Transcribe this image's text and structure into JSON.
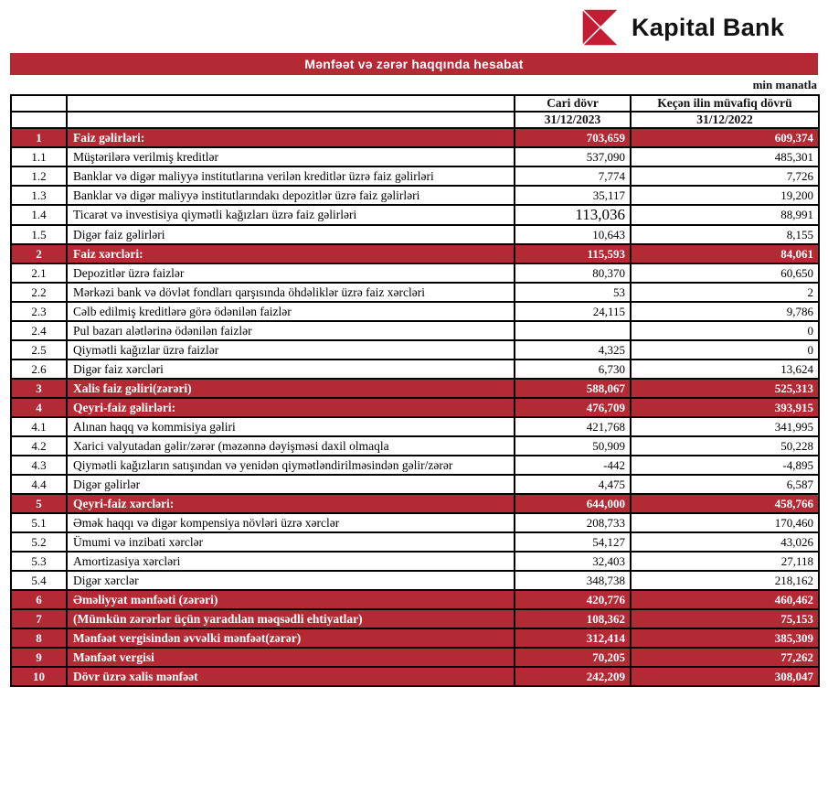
{
  "header": {
    "brand": "Kapital Bank"
  },
  "banner": {
    "title": "Mənfəət və zərər haqqında hesabat"
  },
  "unit_note": "min manatla",
  "colors": {
    "accent_red": "#B32A35",
    "logo_red": "#C31C33",
    "border_black": "#000000",
    "text_white": "#FFFFFF"
  },
  "table": {
    "col_current_label": "Cari dövr",
    "col_previous_label": "Keçən ilin müvafiq dövrü",
    "col_current_date": "31/12/2023",
    "col_previous_date": "31/12/2022",
    "rows": [
      {
        "num": "1",
        "label": "Faiz gəlirləri:",
        "current": "703,659",
        "previous": "609,374",
        "type": "section"
      },
      {
        "num": "1.1",
        "label": "Müştərilərə verilmiş kreditlər",
        "current": "537,090",
        "previous": "485,301",
        "type": "sub"
      },
      {
        "num": "1.2",
        "label": "Banklar və digər maliyyə institutlarına verilən kreditlər üzrə faiz gəlirləri",
        "current": "7,774",
        "previous": "7,726",
        "type": "sub"
      },
      {
        "num": "1.3",
        "label": "Banklar və digər maliyyə institutlarındakı depozitlər üzrə faiz gəlirləri",
        "current": "35,117",
        "previous": "19,200",
        "type": "sub"
      },
      {
        "num": "1.4",
        "label": "Ticarət və investisiya qiymətli kağızları üzrə faiz gəlirləri",
        "current": "113,036",
        "previous": "88,991",
        "type": "sub",
        "big_current": true
      },
      {
        "num": "1.5",
        "label": "Digər faiz gəlirləri",
        "current": "10,643",
        "previous": "8,155",
        "type": "sub"
      },
      {
        "num": "2",
        "label": "Faiz xərcləri:",
        "current": "115,593",
        "previous": "84,061",
        "type": "section"
      },
      {
        "num": "2.1",
        "label": "Depozitlər üzrə faizlər",
        "current": "80,370",
        "previous": "60,650",
        "type": "sub"
      },
      {
        "num": "2.2",
        "label": "Mərkəzi bank və dövlət fondları qarşısında öhdəliklər üzrə faiz xərcləri",
        "current": "53",
        "previous": "2",
        "type": "sub"
      },
      {
        "num": "2.3",
        "label": "Cəlb edilmiş kreditlərə görə ödənilən faizlər",
        "current": "24,115",
        "previous": "9,786",
        "type": "sub"
      },
      {
        "num": "2.4",
        "label": "Pul bazarı alətlərinə ödənilən faizlər",
        "current": "",
        "previous": "0",
        "type": "sub"
      },
      {
        "num": "2.5",
        "label": "Qiymətli kağızlar üzrə faizlər",
        "current": "4,325",
        "previous": "0",
        "type": "sub"
      },
      {
        "num": "2.6",
        "label": "Digər faiz xərcləri",
        "current": "6,730",
        "previous": "13,624",
        "type": "sub"
      },
      {
        "num": "3",
        "label": "Xalis faiz gəliri(zərəri)",
        "current": "588,067",
        "previous": "525,313",
        "type": "section"
      },
      {
        "num": "4",
        "label": "Qeyri-faiz gəlirləri:",
        "current": "476,709",
        "previous": "393,915",
        "type": "section"
      },
      {
        "num": "4.1",
        "label": "Alınan haqq və kommisiya gəliri",
        "current": "421,768",
        "previous": "341,995",
        "type": "sub"
      },
      {
        "num": "4.2",
        "label": "Xarici valyutadan gəlir/zərər (məzənnə dəyişməsi daxil olmaqla",
        "current": "50,909",
        "previous": "50,228",
        "type": "sub"
      },
      {
        "num": "4.3",
        "label": "Qiymətli kağızların satışından və yenidən qiymətləndirilməsindən gəlir/zərər",
        "current": "-442",
        "previous": "-4,895",
        "type": "sub"
      },
      {
        "num": "4.4",
        "label": "Digər gəlirlər",
        "current": "4,475",
        "previous": "6,587",
        "type": "sub"
      },
      {
        "num": "5",
        "label": "Qeyri-faiz xərcləri:",
        "current": "644,000",
        "previous": "458,766",
        "type": "section"
      },
      {
        "num": "5.1",
        "label": "Əmək haqqı və digər kompensiya növləri üzrə xərclər",
        "current": "208,733",
        "previous": "170,460",
        "type": "sub"
      },
      {
        "num": "5.2",
        "label": "Ümumi və inzibati xərclər",
        "current": "54,127",
        "previous": "43,026",
        "type": "sub"
      },
      {
        "num": "5.3",
        "label": "Amortizasiya xərcləri",
        "current": "32,403",
        "previous": "27,118",
        "type": "sub"
      },
      {
        "num": "5.4",
        "label": "Digər xərclər",
        "current": "348,738",
        "previous": "218,162",
        "type": "sub"
      },
      {
        "num": "6",
        "label": "Əməliyyat mənfəəti (zərəri)",
        "current": "420,776",
        "previous": "460,462",
        "type": "section"
      },
      {
        "num": "7",
        "label": "(Mümkün zərərlər üçün yaradılan məqsədli ehtiyatlar)",
        "current": "108,362",
        "previous": "75,153",
        "type": "section",
        "light_values": true
      },
      {
        "num": "8",
        "label": "Mənfəət vergisindən əvvəlki mənfəət(zərər)",
        "current": "312,414",
        "previous": "385,309",
        "type": "section"
      },
      {
        "num": "9",
        "label": "Mənfəət vergisi",
        "current": "70,205",
        "previous": "77,262",
        "type": "section",
        "light_values": true
      },
      {
        "num": "10",
        "label": "Dövr üzrə xalis mənfəət",
        "current": "242,209",
        "previous": "308,047",
        "type": "section"
      }
    ]
  }
}
